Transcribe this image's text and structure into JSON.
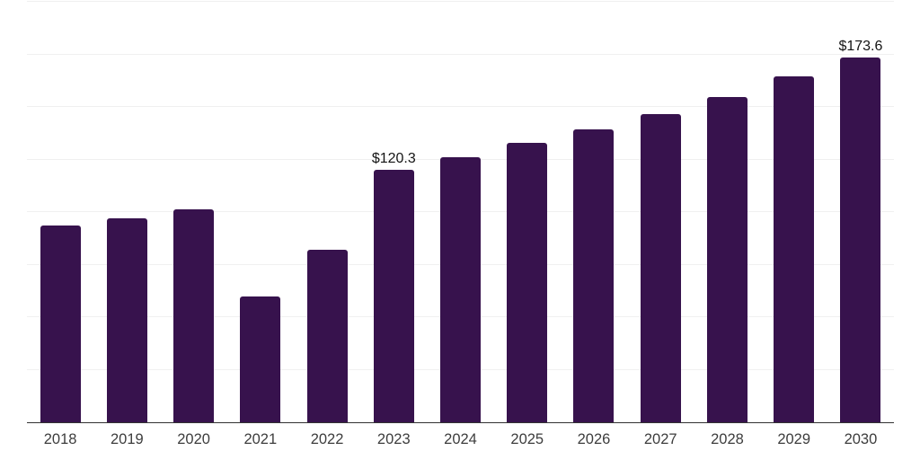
{
  "chart_data": {
    "type": "bar",
    "title": "",
    "xlabel": "",
    "ylabel": "",
    "categories": [
      "2018",
      "2019",
      "2020",
      "2021",
      "2022",
      "2023",
      "2024",
      "2025",
      "2026",
      "2027",
      "2028",
      "2029",
      "2030"
    ],
    "values": [
      93.5,
      97.2,
      101.5,
      59.8,
      82.0,
      120.3,
      126.2,
      132.7,
      139.5,
      146.8,
      154.9,
      164.5,
      173.6
    ],
    "data_labels": {
      "2023": "$120.3",
      "2030": "$173.6"
    },
    "ylim": [
      0,
      200
    ],
    "gridline_step": 25,
    "grid": "horizontal",
    "legend_position": "none",
    "colors": {
      "bar": "#37124D",
      "gridline": "#f0f0f0",
      "axis_line": "#333333",
      "data_label": "#141414",
      "tick_label": "#3d3d3d",
      "background": "#ffffff"
    }
  }
}
